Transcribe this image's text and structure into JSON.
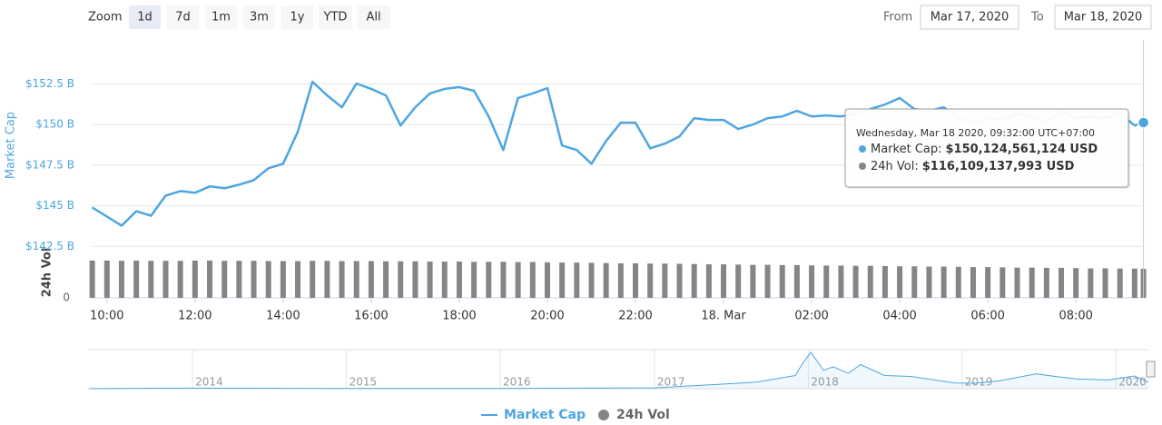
{
  "chart_data": {
    "type": "line",
    "controls": {
      "zoom_label": "Zoom",
      "zoom_buttons": [
        "1d",
        "7d",
        "1m",
        "3m",
        "1y",
        "YTD",
        "All"
      ],
      "active_zoom": "1d",
      "from_label": "From",
      "from": "Mar 17, 2020",
      "to_label": "To",
      "to": "Mar 18, 2020"
    },
    "ylabel": "Market Cap",
    "y2label": "24h Vol",
    "x": [
      "2020-03-17T09:40",
      "2020-03-17T10:00",
      "2020-03-17T10:20",
      "2020-03-17T10:40",
      "2020-03-17T11:00",
      "2020-03-17T11:20",
      "2020-03-17T11:40",
      "2020-03-17T12:00",
      "2020-03-17T12:20",
      "2020-03-17T12:40",
      "2020-03-17T13:00",
      "2020-03-17T13:20",
      "2020-03-17T13:40",
      "2020-03-17T14:00",
      "2020-03-17T14:20",
      "2020-03-17T14:40",
      "2020-03-17T15:00",
      "2020-03-17T15:20",
      "2020-03-17T15:40",
      "2020-03-17T16:00",
      "2020-03-17T16:20",
      "2020-03-17T16:40",
      "2020-03-17T17:00",
      "2020-03-17T17:20",
      "2020-03-17T17:40",
      "2020-03-17T18:00",
      "2020-03-17T18:20",
      "2020-03-17T18:40",
      "2020-03-17T19:00",
      "2020-03-17T19:20",
      "2020-03-17T19:40",
      "2020-03-17T20:00",
      "2020-03-17T20:20",
      "2020-03-17T20:40",
      "2020-03-17T21:00",
      "2020-03-17T21:20",
      "2020-03-17T21:40",
      "2020-03-17T22:00",
      "2020-03-17T22:20",
      "2020-03-17T22:40",
      "2020-03-17T23:00",
      "2020-03-17T23:20",
      "2020-03-17T23:40",
      "2020-03-18T00:00",
      "2020-03-18T00:20",
      "2020-03-18T00:40",
      "2020-03-18T01:00",
      "2020-03-18T01:20",
      "2020-03-18T01:40",
      "2020-03-18T02:00",
      "2020-03-18T02:20",
      "2020-03-18T02:40",
      "2020-03-18T03:00",
      "2020-03-18T03:20",
      "2020-03-18T03:40",
      "2020-03-18T04:00",
      "2020-03-18T04:20",
      "2020-03-18T04:40",
      "2020-03-18T05:00",
      "2020-03-18T05:20",
      "2020-03-18T05:40",
      "2020-03-18T06:00",
      "2020-03-18T06:20",
      "2020-03-18T06:40",
      "2020-03-18T07:00",
      "2020-03-18T07:20",
      "2020-03-18T07:40",
      "2020-03-18T08:00",
      "2020-03-18T08:20",
      "2020-03-18T08:40",
      "2020-03-18T09:00",
      "2020-03-18T09:20",
      "2020-03-18T09:32"
    ],
    "series": [
      {
        "name": "Market Cap",
        "type": "line",
        "color": "#4da6e0",
        "values": [
          144.9,
          144.34,
          143.78,
          144.67,
          144.39,
          145.63,
          145.91,
          145.8,
          146.19,
          146.08,
          146.3,
          146.58,
          147.31,
          147.59,
          149.55,
          152.63,
          151.79,
          151.06,
          152.52,
          152.19,
          151.79,
          149.94,
          151.06,
          151.91,
          152.19,
          152.3,
          152.07,
          150.5,
          148.43,
          151.63,
          151.91,
          152.24,
          148.71,
          148.43,
          147.59,
          148.99,
          150.11,
          150.11,
          148.54,
          148.82,
          149.27,
          150.39,
          150.28,
          150.28,
          149.72,
          150.0,
          150.39,
          150.5,
          150.84,
          150.5,
          150.56,
          150.5,
          150.67,
          150.95,
          151.23,
          151.63,
          150.95,
          150.84,
          151.06,
          150.39,
          150.11,
          150.39,
          150.28,
          150.67,
          150.39,
          150.11,
          150.84,
          150.39,
          150.5,
          150.39,
          150.67,
          149.94,
          150.12
        ]
      },
      {
        "name": "24h Vol",
        "type": "column",
        "axis": "y2",
        "color": "#858585",
        "values": [
          149,
          149,
          148,
          149,
          148,
          148,
          148,
          149,
          149,
          148,
          148,
          148,
          147,
          147,
          147,
          148,
          148,
          147,
          147,
          147,
          146,
          146,
          146,
          145,
          145,
          145,
          144,
          144,
          144,
          143,
          143,
          142,
          141,
          141,
          140,
          139,
          138,
          138,
          137,
          137,
          136,
          135,
          134,
          134,
          133,
          132,
          132,
          131,
          131,
          130,
          129,
          129,
          128,
          128,
          127,
          126,
          126,
          125,
          125,
          124,
          123,
          123,
          122,
          121,
          121,
          120,
          120,
          119,
          118,
          118,
          117,
          117,
          116.11
        ]
      }
    ],
    "xlim": [
      "2020-03-17T09:38",
      "2020-03-18T09:35"
    ],
    "xticks": [
      {
        "value": "2020-03-17T10:00",
        "label": "10:00"
      },
      {
        "value": "2020-03-17T12:00",
        "label": "12:00"
      },
      {
        "value": "2020-03-17T14:00",
        "label": "14:00"
      },
      {
        "value": "2020-03-17T16:00",
        "label": "16:00"
      },
      {
        "value": "2020-03-17T18:00",
        "label": "18:00"
      },
      {
        "value": "2020-03-17T20:00",
        "label": "20:00"
      },
      {
        "value": "2020-03-17T22:00",
        "label": "22:00"
      },
      {
        "value": "2020-03-18T00:00",
        "label": "18. Mar"
      },
      {
        "value": "2020-03-18T02:00",
        "label": "02:00"
      },
      {
        "value": "2020-03-18T04:00",
        "label": "04:00"
      },
      {
        "value": "2020-03-18T06:00",
        "label": "06:00"
      },
      {
        "value": "2020-03-18T08:00",
        "label": "08:00"
      }
    ],
    "ylim": [
      142.3,
      155.2
    ],
    "yticks": [
      {
        "value": 142.5,
        "label": "$142.5 B"
      },
      {
        "value": 145,
        "label": "$145 B"
      },
      {
        "value": 147.5,
        "label": "$147.5 B"
      },
      {
        "value": 150,
        "label": "$150 B"
      },
      {
        "value": 152.5,
        "label": "$152.5 B"
      }
    ],
    "y2lim": [
      0,
      156
    ],
    "y2ticks": [
      0
    ],
    "grid": true,
    "tooltip": {
      "header": "Wednesday, Mar 18 2020, 09:32:00 UTC+07:00",
      "items": [
        {
          "label": "Market Cap:",
          "value": "$150,124,561,124 USD"
        },
        {
          "label": "24h Vol:",
          "value": "$116,109,137,993 USD"
        }
      ]
    },
    "navigator": {
      "x": [
        "2013-05-01",
        "2014-01-01",
        "2015-01-01",
        "2016-01-01",
        "2017-01-01",
        "2017-06-01",
        "2017-09-01",
        "2017-12-01",
        "2017-12-20",
        "2018-01-07",
        "2018-02-06",
        "2018-03-01",
        "2018-04-06",
        "2018-05-05",
        "2018-07-01",
        "2018-09-01",
        "2018-12-15",
        "2019-02-01",
        "2019-04-01",
        "2019-06-26",
        "2019-08-01",
        "2019-10-01",
        "2019-12-15",
        "2020-02-14",
        "2020-03-18"
      ],
      "values": [
        1.5,
        12,
        5,
        7,
        18,
        100,
        150,
        300,
        600,
        830,
        420,
        500,
        350,
        550,
        300,
        280,
        130,
        125,
        180,
        340,
        290,
        220,
        200,
        290,
        150
      ],
      "xlim": [
        "2013-04-28",
        "2020-03-18"
      ],
      "ylim": [
        0,
        850
      ],
      "xticks": [
        {
          "value": "2014-01-01",
          "label": "2014"
        },
        {
          "value": "2015-01-01",
          "label": "2015"
        },
        {
          "value": "2016-01-01",
          "label": "2016"
        },
        {
          "value": "2017-01-01",
          "label": "2017"
        },
        {
          "value": "2018-01-01",
          "label": "2018"
        },
        {
          "value": "2019-01-01",
          "label": "2019"
        },
        {
          "value": "2020-01-01",
          "label": "2020"
        }
      ]
    }
  }
}
